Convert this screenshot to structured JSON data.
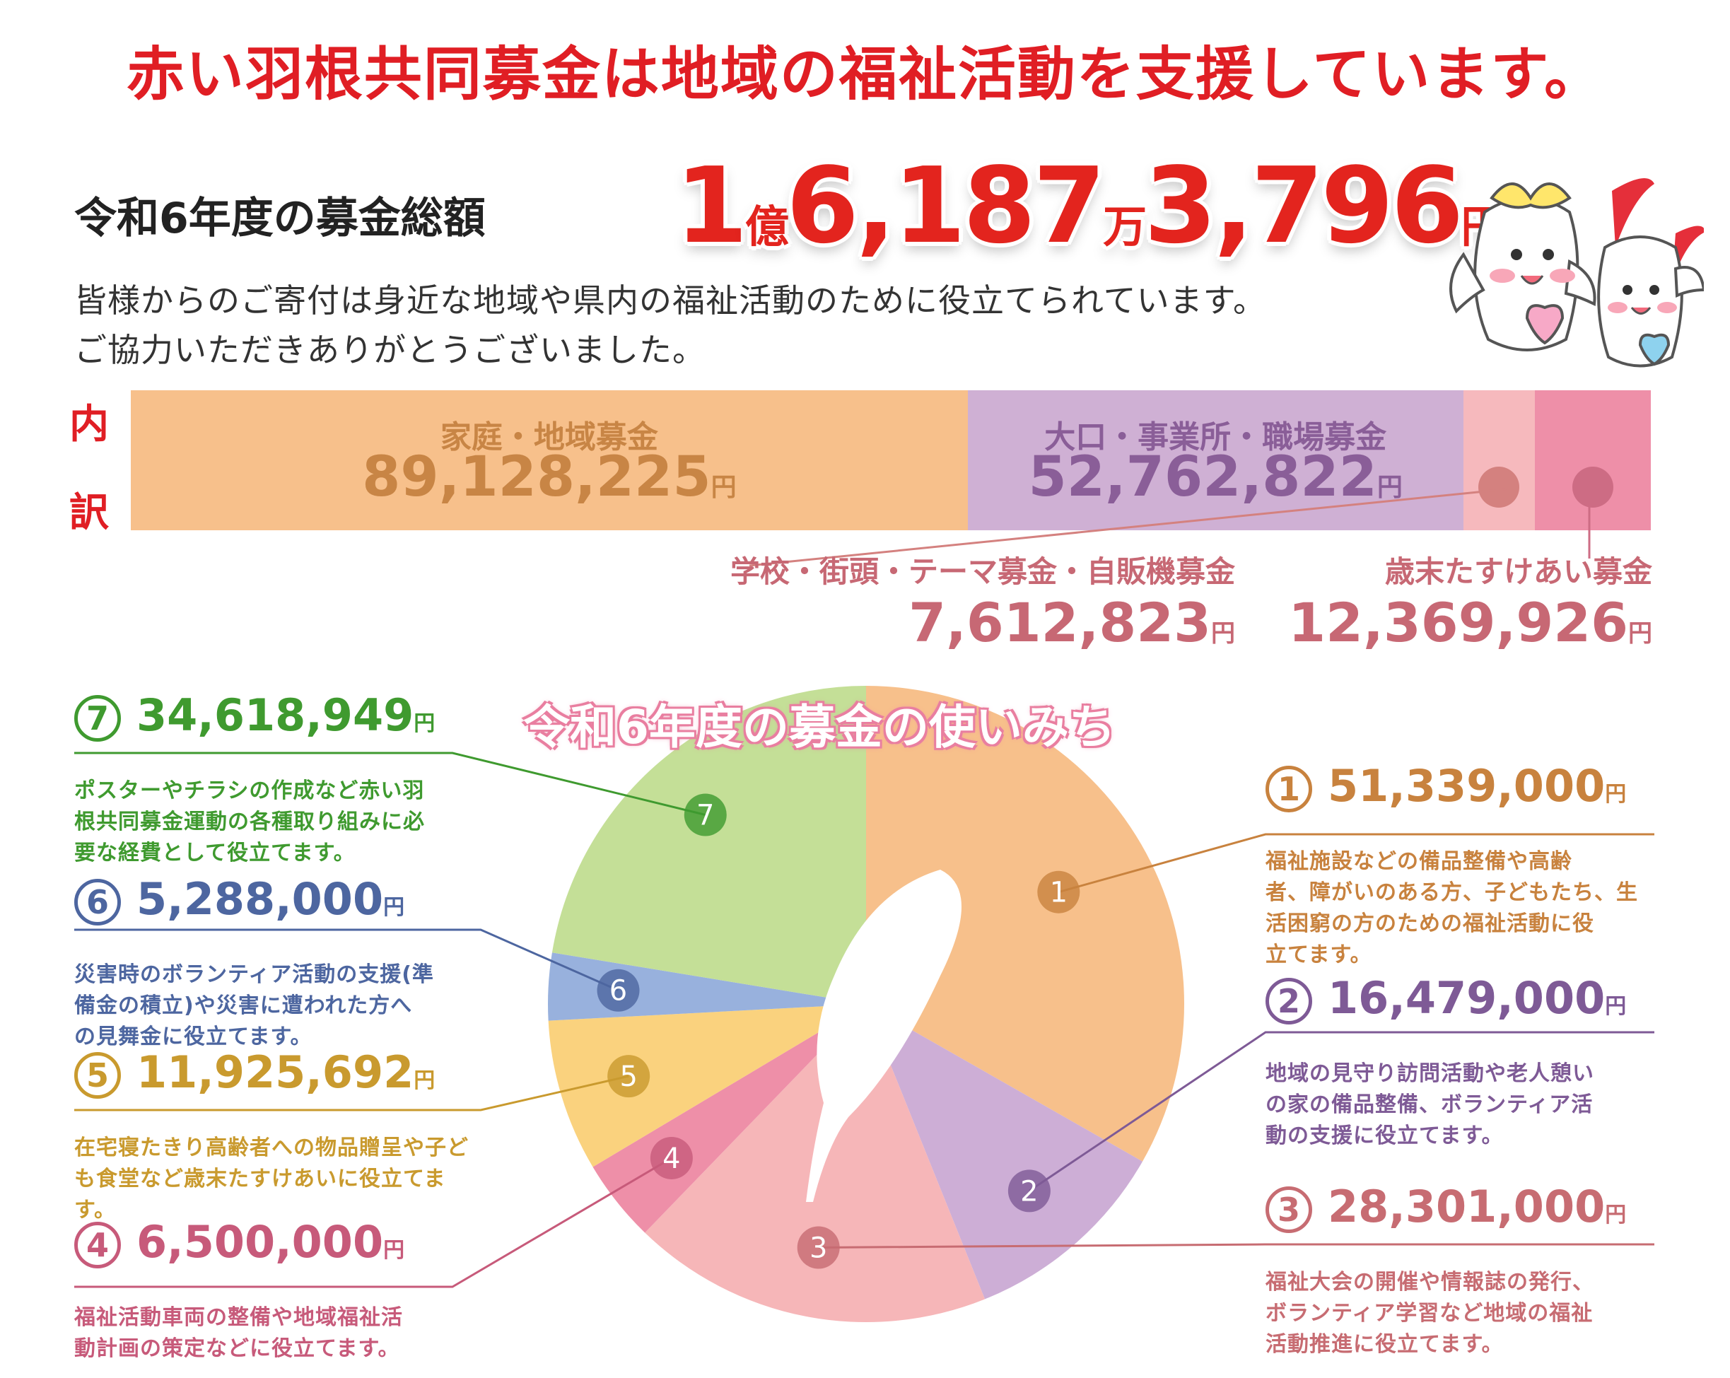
{
  "headline": "赤い羽根共同募金は地域の福祉活動を支援しています。",
  "total": {
    "label": "令和6年度の募金総額",
    "part1": "1",
    "unit1": "億",
    "part2": "6,187",
    "unit2": "万",
    "part3": "3,796",
    "unit3": "円"
  },
  "intro": {
    "line1": "皆様からのご寄付は身近な地域や県内の福祉活動のために役立てられています。",
    "line2": "ご協力いただきありがとうございました。"
  },
  "breakdown": {
    "label_top": "内",
    "label_bottom": "訳",
    "yen": "円",
    "segments": [
      {
        "name": "家庭・地域募金",
        "value": "89,128,225",
        "amount": 89128225,
        "color": "#f7c08b",
        "text_color": "#c88545"
      },
      {
        "name": "大口・事業所・職場募金",
        "value": "52,762,822",
        "amount": 52762822,
        "color": "#cfb0d4",
        "text_color": "#8a5e98"
      },
      {
        "name": "学校・街頭・テーマ募金・自販機募金",
        "value": "7,612,823",
        "amount": 7612823,
        "color": "#f6b9bd",
        "text_color": "#c76874"
      },
      {
        "name": "歳末たすけあい募金",
        "value": "12,369,926",
        "amount": 12369926,
        "color": "#ee8fa8",
        "text_color": "#c76874"
      }
    ]
  },
  "usage": {
    "title": "令和6年度の募金の使いみち",
    "yen": "円",
    "items": [
      {
        "num": "1",
        "amount_text": "51,339,000",
        "amount": 51339000,
        "color": "#f7c08b",
        "text_color": "#c8823e",
        "desc": [
          "福祉施設などの備品整備や高齢",
          "者、障がいのある方、子どもたち、生",
          "活困窮の方のための福祉活動に役",
          "立てます。"
        ]
      },
      {
        "num": "2",
        "amount_text": "16,479,000",
        "amount": 16479000,
        "color": "#cdaed6",
        "text_color": "#7e5a96",
        "desc": [
          "地域の見守り訪問活動や老人憩い",
          "の家の備品整備、ボランティア活",
          "動の支援に役立てます。"
        ]
      },
      {
        "num": "3",
        "amount_text": "28,301,000",
        "amount": 28301000,
        "color": "#f6b6b8",
        "text_color": "#c76c72",
        "desc": [
          "福祉大会の開催や情報誌の発行、",
          "ボランティア学習など地域の福祉",
          "活動推進に役立てます。"
        ]
      },
      {
        "num": "4",
        "amount_text": "6,500,000",
        "amount": 6500000,
        "color": "#ee8fa8",
        "text_color": "#c75a7a",
        "desc": [
          "福祉活動車両の整備や地域福祉活",
          "動計画の策定などに役立てます。"
        ]
      },
      {
        "num": "5",
        "amount_text": "11,925,692",
        "amount": 11925692,
        "color": "#fad27e",
        "text_color": "#c99a2e",
        "desc": [
          "在宅寝たきり高齢者への物品贈呈や子ど",
          "も食堂など歳末たすけあいに役立てます。"
        ]
      },
      {
        "num": "6",
        "amount_text": "5,288,000",
        "amount": 5288000,
        "color": "#98b1dd",
        "text_color": "#4d66a0",
        "desc": [
          "災害時のボランティア活動の支援(準",
          "備金の積立)や災害に遭われた方へ",
          "の見舞金に役立てます。"
        ]
      },
      {
        "num": "7",
        "amount_text": "34,618,949",
        "amount": 34618949,
        "color": "#c4df97",
        "text_color": "#3f9a2f",
        "desc": [
          "ポスターやチラシの作成など赤い羽",
          "根共同募金運動の各種取り組みに必",
          "要な経費として役立てます。"
        ]
      }
    ]
  },
  "chart_data": [
    {
      "type": "bar",
      "title": "内訳",
      "categories": [
        "家庭・地域募金",
        "大口・事業所・職場募金",
        "学校・街頭・テーマ募金・自販機募金",
        "歳末たすけあい募金"
      ],
      "values": [
        89128225,
        52762822,
        7612823,
        12369926
      ],
      "unit": "円",
      "stacked": true
    },
    {
      "type": "pie",
      "title": "令和6年度の募金の使いみち",
      "categories": [
        "1",
        "2",
        "3",
        "4",
        "5",
        "6",
        "7"
      ],
      "values": [
        51339000,
        16479000,
        28301000,
        6500000,
        11925692,
        5288000,
        34618949
      ],
      "unit": "円"
    }
  ]
}
